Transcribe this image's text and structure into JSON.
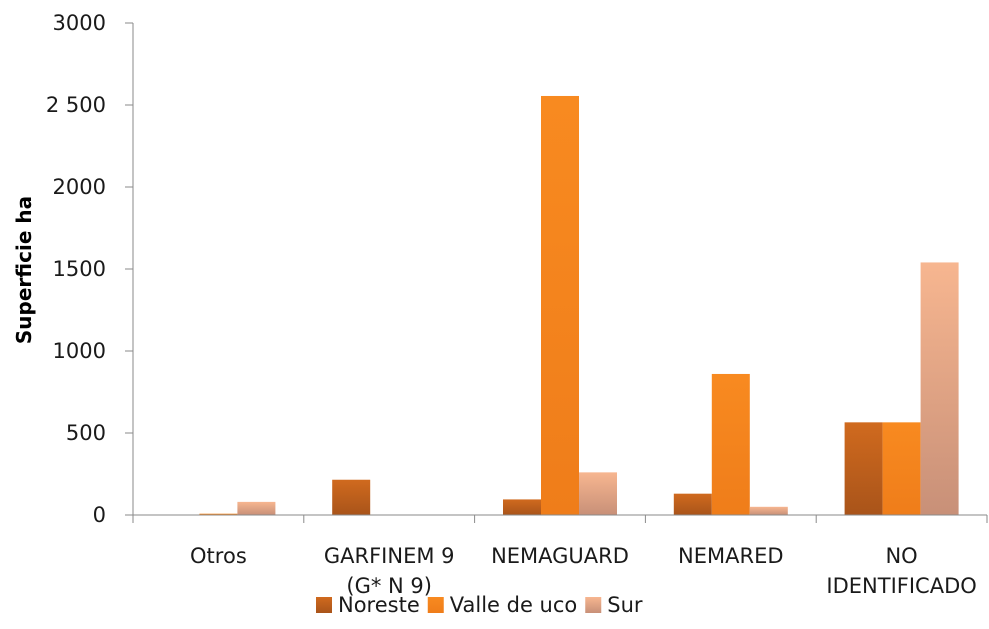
{
  "chart_data": {
    "type": "bar",
    "title": "",
    "xlabel": "",
    "ylabel": "Superficie ha",
    "ylim": [
      0,
      3000
    ],
    "yticks": [
      {
        "value": 0,
        "label": "0"
      },
      {
        "value": 500,
        "label": "500"
      },
      {
        "value": 1000,
        "label": "1000"
      },
      {
        "value": 1500,
        "label": "1500"
      },
      {
        "value": 2000,
        "label": "2000"
      },
      {
        "value": 2500,
        "label": "2 500"
      },
      {
        "value": 3000,
        "label": "3000"
      }
    ],
    "categories": [
      [
        "Otros"
      ],
      [
        "GARFINEM 9",
        "(G* N 9)"
      ],
      [
        "NEMAGUARD"
      ],
      [
        "NEMARED"
      ],
      [
        "NO",
        "IDENTIFICADO"
      ]
    ],
    "series": [
      {
        "name": "Noreste",
        "color": "#c0601a",
        "values": [
          0,
          215,
          95,
          130,
          565
        ]
      },
      {
        "name": "Valle de uco",
        "color": "#f5871f",
        "values": [
          8,
          0,
          2555,
          860,
          565
        ]
      },
      {
        "name": "Sur",
        "color": "#f3b48e",
        "values": [
          80,
          0,
          260,
          50,
          1540
        ]
      }
    ],
    "grid": false,
    "legend_position": "bottom"
  }
}
